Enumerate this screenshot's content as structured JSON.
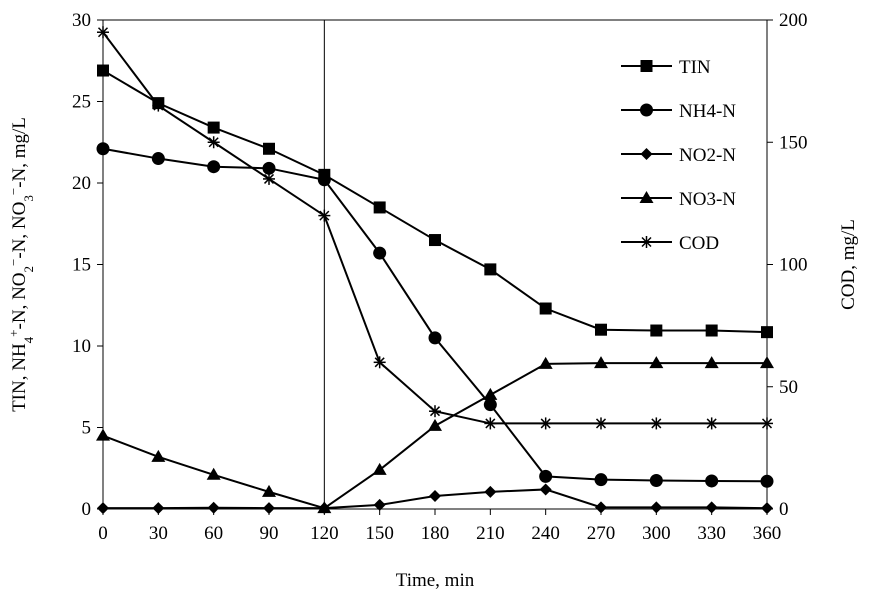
{
  "chart_data": {
    "type": "line",
    "x": [
      0,
      30,
      60,
      90,
      120,
      150,
      180,
      210,
      240,
      270,
      300,
      330,
      360
    ],
    "x_ticks": [
      "0",
      "30",
      "60",
      "90",
      "120",
      "150",
      "180",
      "210",
      "240",
      "270",
      "300",
      "330",
      "360"
    ],
    "xlabel": "Time, min",
    "ylabel_left": "TIN, NH4+-N, NO2−-N, NO3−-N, mg/L",
    "ylabel_right": "COD, mg/L",
    "ylim_left": [
      0,
      30
    ],
    "ylim_right": [
      0,
      200
    ],
    "y_ticks_left": [
      "0",
      "5",
      "10",
      "15",
      "20",
      "25",
      "30"
    ],
    "y_ticks_right": [
      "0",
      "50",
      "100",
      "150",
      "200"
    ],
    "vertical_reference_x": 120,
    "grid": false,
    "legend_position": "top-right",
    "series": [
      {
        "name": "TIN",
        "axis": "left",
        "marker": "square",
        "values": [
          26.9,
          24.9,
          23.4,
          22.1,
          20.5,
          18.5,
          16.5,
          14.7,
          12.3,
          11.0,
          10.95,
          10.95,
          10.85
        ]
      },
      {
        "name": "NH4-N",
        "axis": "left",
        "marker": "circle",
        "values": [
          22.1,
          21.5,
          21.0,
          20.9,
          20.2,
          15.7,
          10.5,
          6.4,
          2.0,
          1.8,
          1.75,
          1.72,
          1.7
        ]
      },
      {
        "name": "NO2-N",
        "axis": "left",
        "marker": "diamond",
        "values": [
          0.05,
          0.05,
          0.08,
          0.05,
          0.05,
          0.25,
          0.8,
          1.05,
          1.2,
          0.1,
          0.1,
          0.1,
          0.05
        ]
      },
      {
        "name": "NO3-N",
        "axis": "left",
        "marker": "triangle",
        "values": [
          4.5,
          3.2,
          2.1,
          1.05,
          0.05,
          2.4,
          5.1,
          7.0,
          8.9,
          8.95,
          8.95,
          8.95,
          8.95
        ]
      },
      {
        "name": "COD",
        "axis": "right",
        "marker": "asterisk",
        "values": [
          195,
          165,
          150,
          135,
          120,
          60,
          40,
          35,
          35,
          35,
          35,
          35,
          35
        ]
      }
    ]
  }
}
